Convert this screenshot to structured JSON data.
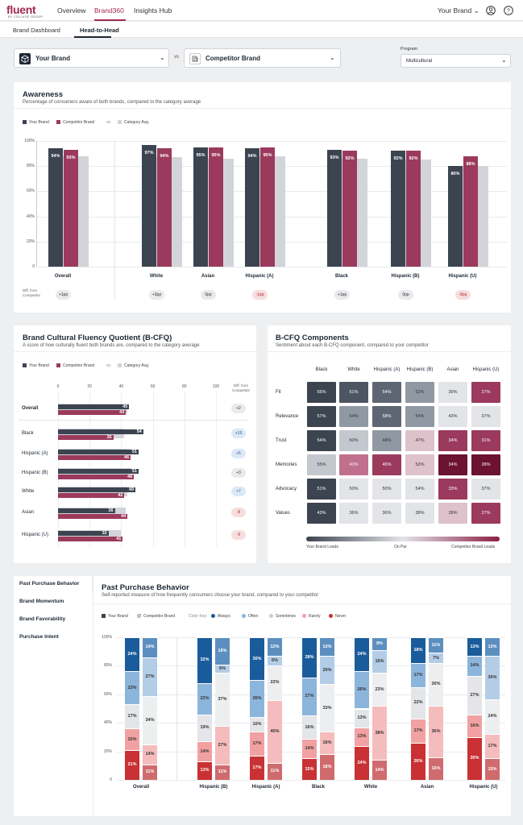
{
  "app": {
    "logo": "fluent",
    "logo_sub": "BY COLLAGE GROUP",
    "user": "Your Brand"
  },
  "nav": [
    {
      "label": "Overview"
    },
    {
      "label": "Brand360"
    },
    {
      "label": "Insights Hub"
    }
  ],
  "subnav": [
    {
      "label": "Brand Dashboard"
    },
    {
      "label": "Head-to-Head"
    }
  ],
  "selectors": {
    "brand": "Your Brand",
    "vs": "vs",
    "competitor": "Competitor Brand",
    "program_label": "Program",
    "program": "Multicultural"
  },
  "colors": {
    "your_brand": "#3c4450",
    "competitor": "#9b3a5c",
    "category": "#d2d4da"
  },
  "awareness": {
    "title": "Awareness",
    "subtitle": "Percentage of consumers aware of both brands, compared to the category average",
    "legend": [
      "Your Brand",
      "Competitor Brand",
      "vs.",
      "Category Avg."
    ],
    "diff_label": "Diff. from Competitor",
    "chart_data": {
      "type": "bar",
      "categories": [
        "Overall",
        "White",
        "Asian",
        "Hispanic (A)",
        "Black",
        "Hispanic (B)",
        "Hispanic (U)"
      ],
      "series": [
        {
          "name": "Your Brand",
          "values": [
            94,
            97,
            95,
            94,
            93,
            92,
            80
          ]
        },
        {
          "name": "Competitor Brand",
          "values": [
            93,
            94,
            95,
            95,
            92,
            92,
            88
          ]
        },
        {
          "name": "Category Avg.",
          "values": [
            88,
            87,
            86,
            88,
            86,
            85,
            80
          ]
        }
      ],
      "ylim": [
        0,
        100
      ],
      "yticks": [
        "0",
        "20%",
        "40%",
        "60%",
        "80%",
        "100%"
      ],
      "labels_a": [
        "94%",
        "97%",
        "95%",
        "94%",
        "93%",
        "92%",
        "80%"
      ],
      "labels_b": [
        "93%",
        "94%",
        "95%",
        "95%",
        "92%",
        "92%",
        "88%"
      ],
      "diffs": [
        "+1pp",
        "+3pp",
        "0pp",
        "-1pp",
        "+1pp",
        "0pp",
        "-8pp"
      ]
    }
  },
  "bcfq": {
    "title": "Brand Cultural Fluency Quotient (B-CFQ)",
    "subtitle": "A score of how culturally fluent both brands are, compared to the category average",
    "legend": [
      "Your Brand",
      "Competitor Brand",
      "vs.",
      "Category Avg."
    ],
    "diff_label": "Diff. from Competitor",
    "xticks": [
      "0",
      "20",
      "40",
      "60",
      "80",
      "100"
    ],
    "chart_data": {
      "type": "bar",
      "categories": [
        "Overall",
        "Black",
        "Hispanic (A)",
        "Hispanic (B)",
        "White",
        "Asian",
        "Hispanic (U)"
      ],
      "series": [
        {
          "name": "Your Brand",
          "values": [
            45,
            54,
            51,
            51,
            49,
            36,
            32
          ]
        },
        {
          "name": "Competitor Brand",
          "values": [
            43,
            35,
            46,
            48,
            42,
            44,
            41
          ]
        },
        {
          "name": "Category Avg.",
          "values": [
            44,
            42,
            45,
            46,
            44,
            43,
            40
          ]
        }
      ],
      "xlim": [
        0,
        100
      ],
      "diffs": [
        "+2",
        "+19",
        "+5",
        "+3",
        "+7",
        "-8",
        "-9"
      ]
    }
  },
  "components": {
    "title": "B-CFQ Components",
    "subtitle": "Sentiment about each B-CFQ component, compared to your competitor",
    "cols": [
      "Black",
      "White",
      "Hispanic (A)",
      "Hispanic (B)",
      "Asian",
      "Hispanic (U)"
    ],
    "rows": [
      "Fit",
      "Relevance",
      "Trust",
      "Memories",
      "Advocacy",
      "Values"
    ],
    "chart_data": {
      "type": "heatmap",
      "values": [
        [
          "55%",
          "51%",
          "54%",
          "52%",
          "39%",
          "27%"
        ],
        [
          "57%",
          "54%",
          "58%",
          "54%",
          "43%",
          "37%"
        ],
        [
          "54%",
          "50%",
          "48%",
          "47%",
          "34%",
          "31%"
        ],
        [
          "55%",
          "41%",
          "45%",
          "52%",
          "34%",
          "28%"
        ],
        [
          "51%",
          "50%",
          "50%",
          "54%",
          "33%",
          "37%"
        ],
        [
          "43%",
          "36%",
          "36%",
          "38%",
          "28%",
          "27%"
        ]
      ],
      "cell_colors": [
        [
          "#3c4450",
          "#4d5562",
          "#5e6673",
          "#9098a4",
          "#e3e4e8",
          "#9b3a5c"
        ],
        [
          "#3c4450",
          "#9098a4",
          "#5e6673",
          "#9098a4",
          "#e3e4e8",
          "#e3e4e8"
        ],
        [
          "#3c4450",
          "#c3c7ce",
          "#9098a4",
          "#ddc2cb",
          "#9b3a5c",
          "#9b3a5c"
        ],
        [
          "#c3c7ce",
          "#c0708c",
          "#9b3a5c",
          "#ddc2cb",
          "#6b1330",
          "#6b1330"
        ],
        [
          "#3c4450",
          "#e3e4e8",
          "#e3e4e8",
          "#e3e4e8",
          "#9b3a5c",
          "#e3e4e8"
        ],
        [
          "#3c4450",
          "#e3e4e8",
          "#e3e4e8",
          "#e3e4e8",
          "#ddc2cb",
          "#9b3a5c"
        ]
      ]
    },
    "scale": [
      "Your Brand Leads",
      "On Par",
      "Competitor Brand Leads"
    ]
  },
  "sidebar": [
    {
      "label": "Past Purchase Behavior"
    },
    {
      "label": "Brand Momentum"
    },
    {
      "label": "Brand Favorability"
    },
    {
      "label": "Purchase Intent"
    }
  ],
  "ppb": {
    "title": "Past Purchase Behavior",
    "subtitle": "Self-reported measure of how frequently consumers choose your brand, compared to your competitor",
    "legend": [
      "Your Brand",
      "Competitor Brand",
      "Color Key:",
      "Always",
      "Often",
      "Sometimes",
      "Rarely",
      "Never"
    ],
    "segment_colors": [
      "#c93134",
      "#f2a1a2",
      "#e3e5e8",
      "#8cb5dc",
      "#1a5c9b"
    ],
    "chart_data": {
      "type": "bar",
      "stacked": true,
      "categories": [
        "Overall",
        "Hispanic (B)",
        "Hispanic (A)",
        "Black",
        "White",
        "Asian",
        "Hispanic (U)"
      ],
      "segments_bottom_to_top": [
        "Never",
        "Rarely",
        "Sometimes",
        "Often",
        "Always"
      ],
      "your_brand": [
        [
          21,
          15,
          17,
          23,
          24
        ],
        [
          13,
          14,
          19,
          22,
          32
        ],
        [
          17,
          17,
          10,
          26,
          30
        ],
        [
          15,
          14,
          16,
          27,
          28
        ],
        [
          24,
          13,
          13,
          26,
          24
        ],
        [
          26,
          17,
          22,
          17,
          18
        ],
        [
          30,
          16,
          27,
          14,
          13
        ]
      ],
      "competitor": [
        [
          11,
          14,
          34,
          27,
          14
        ],
        [
          11,
          27,
          37,
          6,
          19
        ],
        [
          11,
          40,
          22,
          6,
          12
        ],
        [
          18,
          16,
          33,
          20,
          13
        ],
        [
          14,
          38,
          23,
          16,
          9
        ],
        [
          16,
          36,
          30,
          7,
          11
        ],
        [
          15,
          17,
          24,
          30,
          13
        ]
      ],
      "ylim": [
        0,
        100
      ],
      "yticks": [
        "0",
        "20%",
        "40%",
        "60%",
        "80%",
        "100%"
      ]
    }
  }
}
